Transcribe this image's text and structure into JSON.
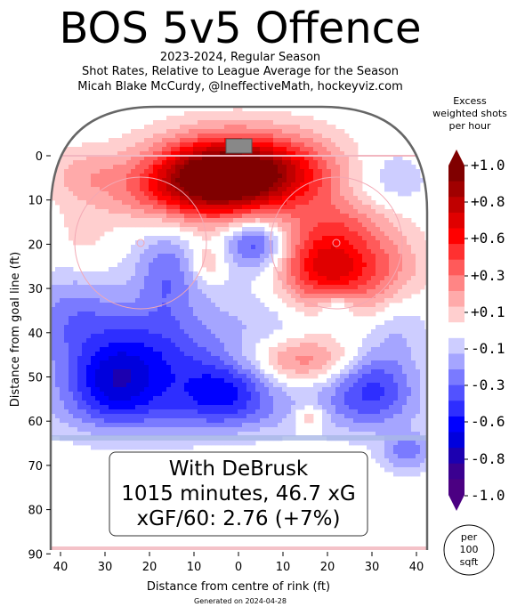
{
  "header": {
    "title": "BOS 5v5 Offence",
    "subtitle1": "2023-2024, Regular Season",
    "subtitle2": "Shot Rates, Relative to League Average for the Season",
    "subtitle3": "Micah Blake McCurdy, @IneffectiveMath, hockeyviz.com"
  },
  "footer": {
    "generated": "Generated on 2024-04-28"
  },
  "chart_data": {
    "type": "heatmap",
    "title": "BOS 5v5 Offence",
    "xlabel": "Distance from centre of rink (ft)",
    "ylabel": "Distance from goal line (ft)",
    "xlim": [
      -42.5,
      42.5
    ],
    "ylim": [
      90,
      -11
    ],
    "x_ticks": [
      40,
      30,
      20,
      10,
      0,
      10,
      20,
      30,
      40
    ],
    "y_ticks": [
      0,
      10,
      20,
      30,
      40,
      50,
      60,
      70,
      80,
      90
    ],
    "annotation": {
      "line1": "With DeBrusk",
      "line2": "1015 minutes, 46.7 xG",
      "line3": "xGF/60: 2.76 (+7%)"
    },
    "colorbar": {
      "title": "Excess\nweighted shots\nper hour",
      "range": [
        -1.0,
        1.0
      ],
      "tick_labels": [
        "+1.0",
        "+0.8",
        "+0.6",
        "+0.3",
        "+0.1",
        "-0.1",
        "-0.3",
        "-0.6",
        "-0.8",
        "-1.0"
      ],
      "unit_label": "per\n100\nsqft",
      "colors": [
        "#800000",
        "#a00000",
        "#c00000",
        "#e00000",
        "#ff0000",
        "#ff3030",
        "#ff5a5a",
        "#ff8585",
        "#ffaaaa",
        "#ffcfcf",
        "#ffffff",
        "#cdcdff",
        "#a5a5ff",
        "#7a7aff",
        "#5252ff",
        "#2e2eff",
        "#0000ff",
        "#0000dd",
        "#1c00b0",
        "#3a0090",
        "#4b0082"
      ]
    },
    "features": [
      {
        "x": 2,
        "y": 4,
        "sx": 13,
        "sy": 6,
        "value": 1.0
      },
      {
        "x": -7,
        "y": 6,
        "sx": 9,
        "sy": 6,
        "value": 0.5
      },
      {
        "x": 20,
        "y": 25,
        "sx": 8,
        "sy": 7,
        "value": 0.75
      },
      {
        "x": -22,
        "y": 8,
        "sx": 10,
        "sy": 5,
        "value": 0.18
      },
      {
        "x": 25,
        "y": 14,
        "sx": 8,
        "sy": 4,
        "value": 0.15
      },
      {
        "x": 34,
        "y": 26,
        "sx": 6,
        "sy": 7,
        "value": 0.2
      },
      {
        "x": 15,
        "y": 46,
        "sx": 9,
        "sy": 3.5,
        "value": 0.35
      },
      {
        "x": -7,
        "y": 24,
        "sx": 3,
        "sy": 3,
        "value": 0.2
      },
      {
        "x": 16,
        "y": 59,
        "sx": 2.5,
        "sy": 2,
        "value": 0.25
      },
      {
        "x": -35,
        "y": 4,
        "sx": 6,
        "sy": 4,
        "value": 0.15
      },
      {
        "x": -22,
        "y": 46,
        "sx": 14,
        "sy": 9,
        "value": -0.5
      },
      {
        "x": -28,
        "y": 52,
        "sx": 7,
        "sy": 6,
        "value": -0.35
      },
      {
        "x": -3,
        "y": 53,
        "sx": 7,
        "sy": 5,
        "value": -0.4
      },
      {
        "x": 30,
        "y": 52,
        "sx": 7,
        "sy": 6,
        "value": -0.45
      },
      {
        "x": -16,
        "y": 26,
        "sx": 5,
        "sy": 7,
        "value": -0.3
      },
      {
        "x": 4,
        "y": 20,
        "sx": 5,
        "sy": 4,
        "value": -0.45
      },
      {
        "x": 33,
        "y": 6,
        "sx": 7,
        "sy": 6,
        "value": -0.15
      },
      {
        "x": 22,
        "y": 34,
        "sx": 3,
        "sy": 2.5,
        "value": -0.25
      },
      {
        "x": 10,
        "y": 35,
        "sx": 10,
        "sy": 8,
        "value": -0.12
      },
      {
        "x": -38,
        "y": 35,
        "sx": 7,
        "sy": 6,
        "value": -0.2
      },
      {
        "x": 36,
        "y": 38,
        "sx": 5,
        "sy": 6,
        "value": -0.15
      },
      {
        "x": 38,
        "y": 67,
        "sx": 4,
        "sy": 3,
        "value": -0.3
      },
      {
        "x": 0,
        "y": 58,
        "sx": 28,
        "sy": 4,
        "value": -0.15
      },
      {
        "x": -35,
        "y": 18,
        "sx": 4,
        "sy": 5,
        "value": 0.08
      }
    ]
  }
}
